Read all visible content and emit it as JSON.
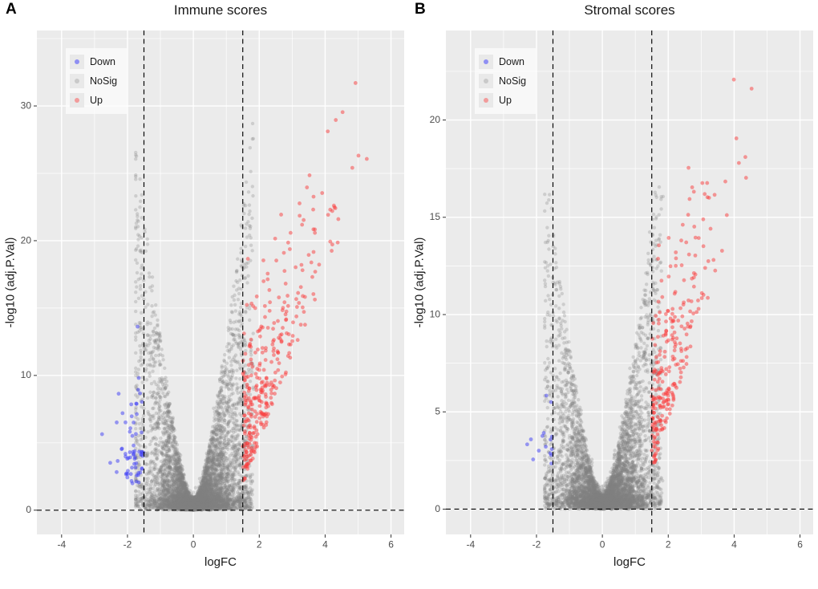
{
  "figure": {
    "background": "#FFFFFF",
    "description": "Two volcano plots of differential expression by logFC vs -log10 adjusted p-value"
  },
  "chart_data": [
    {
      "type": "scatter",
      "subtype": "volcano",
      "panel_label": "A",
      "title": "Immune scores",
      "xlabel": "logFC",
      "ylabel": "-log10 (adj.P.Val)",
      "xlim": [
        -4.75,
        6.4
      ],
      "ylim": [
        -1.8,
        35.6
      ],
      "xticks": [
        -4,
        -2,
        0,
        2,
        4,
        6
      ],
      "yticks": [
        0,
        10,
        20,
        30
      ],
      "x_minor": [
        -3,
        -1,
        1,
        3,
        5
      ],
      "y_minor": [
        5,
        15,
        25,
        35
      ],
      "grid": true,
      "panel_background": "#EBEBEB",
      "grid_color": "#FFFFFF",
      "tick_label_color": "#4D4D4D",
      "threshold_lines": {
        "vertical": [
          -1.5,
          1.5
        ],
        "horizontal": [
          0
        ],
        "style": "dashed",
        "color": "#000000"
      },
      "legend": {
        "position": "top-left-inside",
        "items": [
          {
            "label": "Down",
            "swatch": "#8F8FF3"
          },
          {
            "label": "NoSig",
            "swatch": "#C9C9C9"
          },
          {
            "label": "Up",
            "swatch": "#F29B9B"
          }
        ]
      },
      "seed": 101,
      "series": [
        {
          "name": "NoSig",
          "color": "rgba(130,130,130,0.28)",
          "radius": 2.2,
          "gen": {
            "kind": "cloud",
            "n": 6500,
            "x_mean": 0.05,
            "x_sd": 0.58,
            "x_min": -1.75,
            "x_max": 1.88,
            "wide_frac": 0.22,
            "wide_lo": 0.7,
            "wide_span": 1.12,
            "pos_frac": 0.55,
            "env_scale": 24,
            "env_pow": 1.4,
            "env_ref": 1.6,
            "y_skew": 2.3,
            "y_jitter": 0.4
          }
        },
        {
          "name": "Down",
          "color": "rgba(60,60,245,0.5)",
          "radius": 2.4,
          "gen": {
            "kind": "down",
            "n": 66,
            "x_start": -1.5,
            "x_spread": 0.5,
            "x_min": -2.95,
            "y_base": 1.9,
            "y_noise": 3.4,
            "y_max": 15.2
          }
        },
        {
          "name": "Up",
          "color": "rgba(250,60,60,0.5)",
          "radius": 2.4,
          "gen": {
            "kind": "up",
            "n": 330,
            "x_start": 1.5,
            "x_rate": 0.8,
            "x_max": 5.45,
            "y_base": 1.9,
            "y_slope": 6.2,
            "y_noise": 5.5,
            "y_max": 34.2
          }
        }
      ]
    },
    {
      "type": "scatter",
      "subtype": "volcano",
      "panel_label": "B",
      "title": "Stromal scores",
      "xlabel": "logFC",
      "ylabel": "-log10 (adj.P.Val)",
      "xlim": [
        -4.75,
        6.4
      ],
      "ylim": [
        -1.3,
        24.6
      ],
      "xticks": [
        -4,
        -2,
        0,
        2,
        4,
        6
      ],
      "yticks": [
        0,
        5,
        10,
        15,
        20
      ],
      "x_minor": [
        -3,
        -1,
        1,
        3,
        5
      ],
      "y_minor": [
        2.5,
        7.5,
        12.5,
        17.5,
        22.5
      ],
      "grid": true,
      "panel_background": "#EBEBEB",
      "grid_color": "#FFFFFF",
      "tick_label_color": "#4D4D4D",
      "threshold_lines": {
        "vertical": [
          -1.5,
          1.5
        ],
        "horizontal": [
          0
        ],
        "style": "dashed",
        "color": "#000000"
      },
      "legend": {
        "position": "top-left-inside",
        "items": [
          {
            "label": "Down",
            "swatch": "#8F8FF3"
          },
          {
            "label": "NoSig",
            "swatch": "#C9C9C9"
          },
          {
            "label": "Up",
            "swatch": "#F29B9B"
          }
        ]
      },
      "seed": 202,
      "series": [
        {
          "name": "NoSig",
          "color": "rgba(130,130,130,0.28)",
          "radius": 2.2,
          "gen": {
            "kind": "cloud",
            "n": 6200,
            "x_mean": 0.05,
            "x_sd": 0.58,
            "x_min": -1.75,
            "x_max": 1.85,
            "wide_frac": 0.22,
            "wide_lo": 0.7,
            "wide_span": 1.1,
            "pos_frac": 0.55,
            "env_scale": 16,
            "env_pow": 1.4,
            "env_ref": 1.6,
            "y_skew": 2.3,
            "y_jitter": 0.35
          }
        },
        {
          "name": "Down",
          "color": "rgba(60,60,245,0.5)",
          "radius": 2.4,
          "gen": {
            "kind": "down",
            "n": 15,
            "x_start": -1.5,
            "x_spread": 0.38,
            "x_min": -2.45,
            "y_base": 1.9,
            "y_noise": 1.9,
            "y_max": 6.6
          }
        },
        {
          "name": "Up",
          "color": "rgba(250,60,60,0.5)",
          "radius": 2.4,
          "gen": {
            "kind": "up",
            "n": 270,
            "x_start": 1.5,
            "x_rate": 0.72,
            "x_max": 4.6,
            "y_base": 1.9,
            "y_slope": 5.2,
            "y_noise": 4.2,
            "y_max": 23.6
          }
        }
      ]
    }
  ]
}
